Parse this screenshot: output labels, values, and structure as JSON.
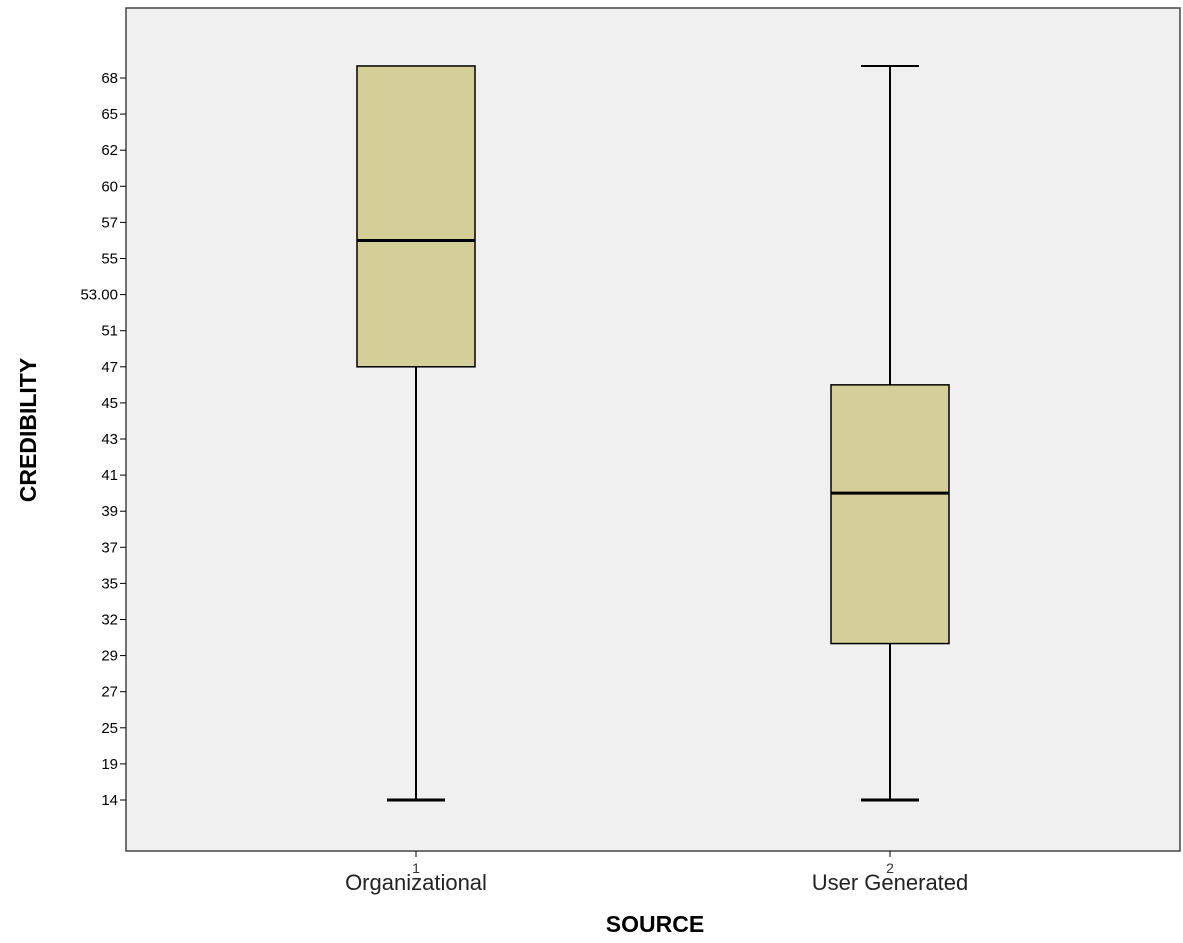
{
  "chart_data": {
    "type": "boxplot",
    "xlabel": "SOURCE",
    "ylabel": "CREDIBILITY",
    "y_ticks": [
      "14",
      "19",
      "25",
      "27",
      "29",
      "32",
      "35",
      "37",
      "39",
      "41",
      "43",
      "45",
      "47",
      "51",
      "53.00",
      "55",
      "57",
      "60",
      "62",
      "65",
      "68"
    ],
    "y_axis_note": "ordinal axis: ticks are evenly spaced, labels are values",
    "grid": false,
    "categories": [
      {
        "label": "Organizational",
        "number": "1",
        "min": "14",
        "q1": "47",
        "median": "56",
        "q3": "69",
        "max": "69"
      },
      {
        "label": "User Generated",
        "number": "2",
        "min": "14",
        "q1": "30",
        "median": "40",
        "q3": "46",
        "max": "69"
      }
    ],
    "box_color": "#d4cf98",
    "plot_background": "#f0f0f0"
  }
}
